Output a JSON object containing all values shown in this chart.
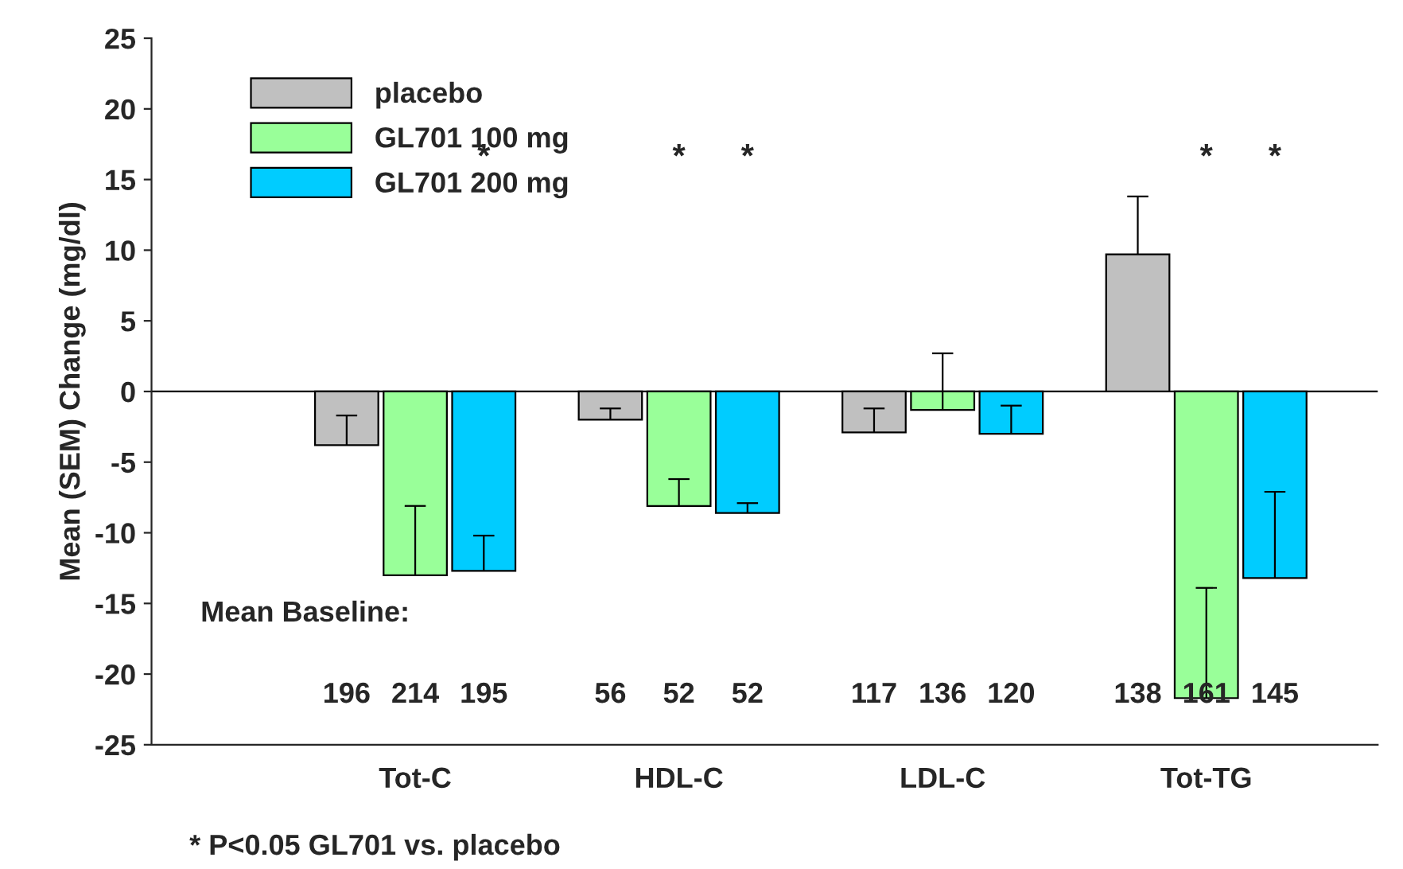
{
  "chart_data": {
    "type": "bar",
    "ylabel": "Mean (SEM) Change (mg/dl)",
    "categories": [
      "Tot-C",
      "HDL-C",
      "LDL-C",
      "Tot-TG"
    ],
    "series": [
      {
        "name": "placebo",
        "color": "#c0c0c0",
        "values": [
          -3.8,
          -2.0,
          -2.9,
          9.7
        ],
        "errors": [
          [
            -3.8,
            -1.7
          ],
          [
            -2.0,
            -1.2
          ],
          [
            -2.9,
            -1.2
          ],
          [
            9.7,
            13.8
          ]
        ]
      },
      {
        "name": "GL701 100 mg",
        "color": "#99ff99",
        "values": [
          -13.0,
          -8.1,
          -1.3,
          -21.7
        ],
        "errors": [
          [
            -13.0,
            -8.1
          ],
          [
            -8.1,
            -6.2
          ],
          [
            -1.3,
            2.7
          ],
          [
            -21.7,
            -13.9
          ]
        ]
      },
      {
        "name": "GL701 200 mg",
        "color": "#00ccff",
        "values": [
          -12.7,
          -8.6,
          -3.0,
          -13.2
        ],
        "errors": [
          [
            -12.7,
            -10.2
          ],
          [
            -8.6,
            -7.9
          ],
          [
            -3.0,
            -1.0
          ],
          [
            -13.2,
            -7.1
          ]
        ]
      }
    ],
    "ylim": [
      -25,
      25
    ],
    "yticks": [
      -25,
      -20,
      -15,
      -10,
      -5,
      0,
      5,
      10,
      15,
      20,
      25
    ],
    "ref_lines": [
      {
        "axis": "y",
        "value": 0,
        "color": "#000000"
      }
    ],
    "legend": "top left",
    "grid": false,
    "annotations": [
      "Mean Baseline:",
      "196",
      "214",
      "195",
      "56",
      "52",
      "52",
      "117",
      "136",
      "120",
      "138",
      "161",
      "145",
      "*",
      "*",
      "*",
      "*",
      "*",
      "* P<0.05 GL701 vs. placebo"
    ]
  }
}
